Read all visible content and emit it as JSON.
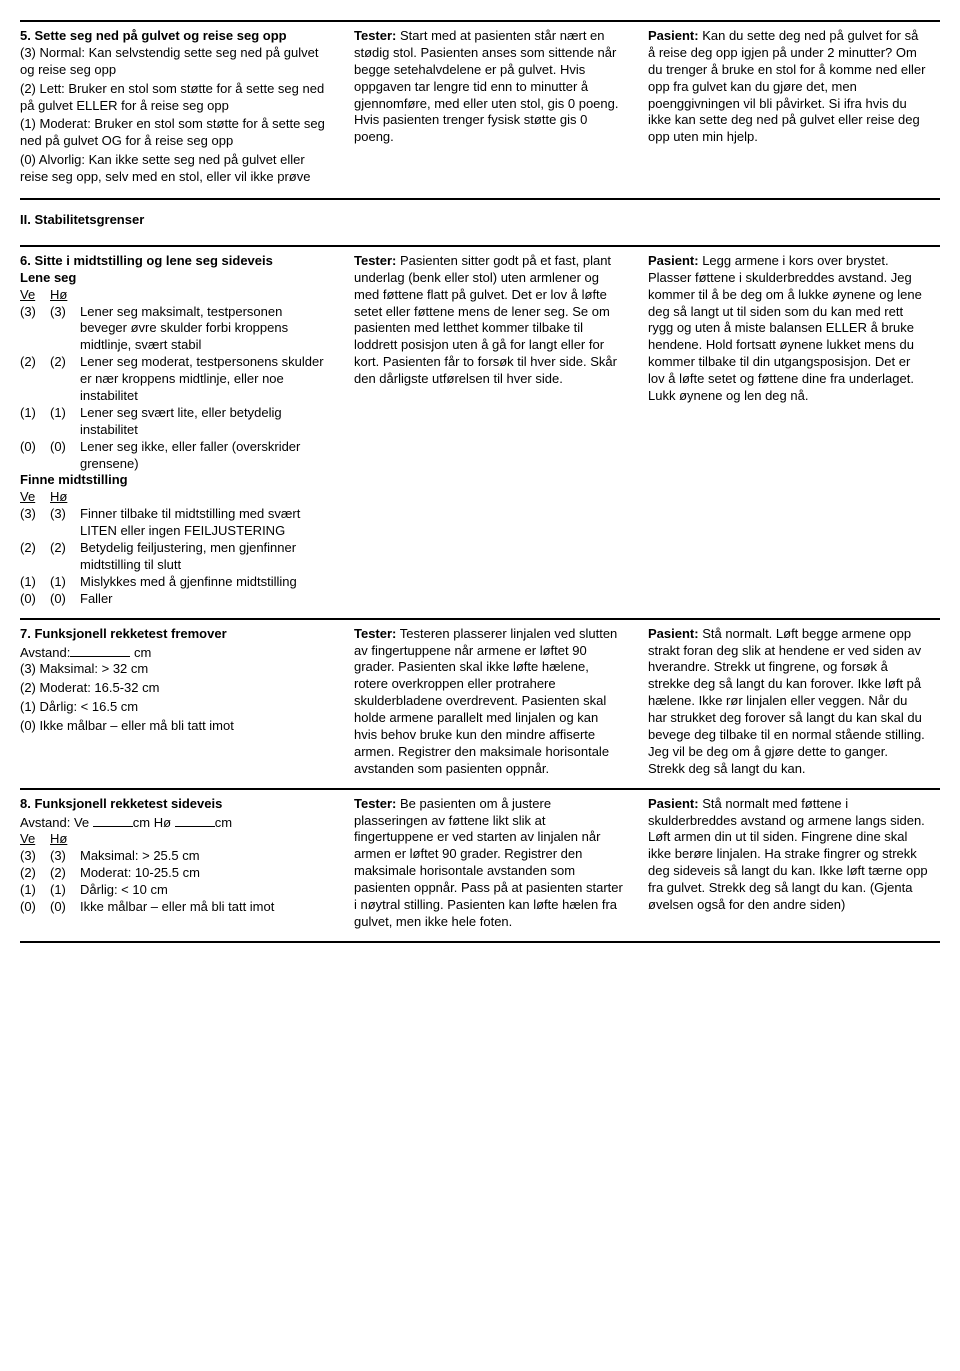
{
  "colors": {
    "text": "#000000",
    "bg": "#ffffff",
    "rule": "#000000"
  },
  "typography": {
    "family": "Arial",
    "size_pt": 10,
    "bold_weight": 700
  },
  "item5": {
    "title": "5. Sette seg ned på gulvet og reise seg opp",
    "left": [
      "(3) Normal: Kan selvstendig sette seg ned på gulvet og reise seg opp",
      "(2) Lett: Bruker en stol som støtte for å sette seg ned på gulvet ELLER for å reise seg opp",
      "(1) Moderat: Bruker en stol som støtte for å sette seg ned på gulvet OG for å reise seg opp",
      "(0) Alvorlig: Kan ikke sette seg ned på gulvet eller reise seg opp, selv med en stol, eller vil ikke prøve"
    ],
    "tester_label": "Tester:",
    "tester": "Start med at pasienten står nært en stødig stol. Pasienten anses som sittende når begge setehalvdelene er på gulvet. Hvis oppgaven tar lengre tid enn to minutter å gjennomføre, med eller uten stol, gis 0 poeng. Hvis pasienten trenger fysisk støtte gis 0 poeng.",
    "pasient_label": "Pasient:",
    "pasient": "Kan du sette deg ned på gulvet for så å reise deg opp igjen på under 2 minutter? Om du trenger å bruke en stol for å komme ned eller opp fra gulvet kan du gjøre det, men poenggivningen vil bli påvirket. Si ifra hvis du ikke kan sette deg ned på gulvet eller reise deg opp uten min hjelp."
  },
  "stability_heading": "II. Stabilitetsgrenser",
  "item6": {
    "title": "6. Sitte i midtstilling og lene seg sideveis",
    "sub1": "Lene seg",
    "ve": "Ve",
    "ho": "Hø",
    "rows1": [
      {
        "a": "(3)",
        "b": "(3)",
        "t": "Lener seg maksimalt, testpersonen beveger øvre skulder forbi kroppens midtlinje, svært stabil"
      },
      {
        "a": "(2)",
        "b": "(2)",
        "t": "Lener seg moderat, testpersonens skulder er nær kroppens midtlinje, eller noe instabilitet"
      },
      {
        "a": "(1)",
        "b": "(1)",
        "t": "Lener seg svært lite, eller betydelig instabilitet"
      },
      {
        "a": "(0)",
        "b": "(0)",
        "t": "Lener seg ikke, eller faller (overskrider grensene)"
      }
    ],
    "sub2": "Finne midtstilling",
    "rows2": [
      {
        "a": "(3)",
        "b": "(3)",
        "t": "Finner tilbake til midtstilling med svært LITEN eller ingen FEILJUSTERING"
      },
      {
        "a": "(2)",
        "b": "(2)",
        "t": "Betydelig feiljustering, men gjenfinner midtstilling til slutt"
      },
      {
        "a": "(1)",
        "b": "(1)",
        "t": "Mislykkes med å gjenfinne midtstilling"
      },
      {
        "a": "(0)",
        "b": "(0)",
        "t": "Faller"
      }
    ],
    "tester_label": "Tester:",
    "tester": "Pasienten sitter godt på et fast, plant underlag (benk eller stol) uten armlener og med føttene flatt på gulvet. Det er lov å løfte setet eller føttene mens de lener seg. Se om pasienten med letthet kommer tilbake til loddrett posisjon uten å gå for langt eller for kort. Pasienten får to forsøk til hver side. Skår den dårligste utførelsen til hver side.",
    "pasient_label": "Pasient:",
    "pasient": "Legg armene i kors over brystet. Plasser føttene i skulderbreddes avstand. Jeg kommer til å be deg om å lukke øynene og lene deg så langt ut til siden som du kan med rett rygg og uten å miste balansen ELLER å bruke hendene. Hold fortsatt øynene lukket mens du kommer tilbake til din utgangsposisjon. Det er lov å løfte setet og føttene dine fra underlaget. Lukk øynene og len deg nå."
  },
  "item7": {
    "title": "7. Funksjonell rekketest fremover",
    "dist_label": "Avstand:",
    "dist_unit": "cm",
    "left": [
      "(3) Maksimal: > 32 cm",
      "(2) Moderat: 16.5-32 cm",
      "(1) Dårlig: < 16.5 cm",
      "(0) Ikke målbar – eller må bli tatt imot"
    ],
    "tester_label": "Tester:",
    "tester": "Testeren plasserer linjalen ved slutten av fingertuppene når armene er løftet 90 grader. Pasienten skal ikke løfte hælene, rotere overkroppen eller protrahere skulderbladene overdrevent. Pasienten skal holde armene parallelt med linjalen og kan hvis behov bruke kun den mindre affiserte armen. Registrer den maksimale horisontale avstanden som pasienten oppnår.",
    "pasient_label": "Pasient:",
    "pasient": "Stå normalt. Løft begge armene opp strakt foran deg slik at hendene er ved siden av hverandre. Strekk ut fingrene, og forsøk å strekke deg så langt du kan forover. Ikke løft på hælene. Ikke rør linjalen eller veggen. Når du har strukket deg forover så langt du kan skal du bevege deg tilbake til en normal stående stilling. Jeg vil be deg om å gjøre dette to ganger. Strekk deg så langt du kan."
  },
  "item8": {
    "title": "8. Funksjonell rekketest sideveis",
    "dist_prefix": "Avstand: Ve",
    "dist_mid": "cm Hø",
    "dist_suffix": "cm",
    "ve": "Ve",
    "ho": "Hø",
    "rows": [
      {
        "a": "(3)",
        "b": "(3)",
        "t": "Maksimal: > 25.5 cm"
      },
      {
        "a": "(2)",
        "b": "(2)",
        "t": "Moderat: 10-25.5 cm"
      },
      {
        "a": "(1)",
        "b": "(1)",
        "t": "Dårlig: < 10 cm"
      },
      {
        "a": "(0)",
        "b": "(0)",
        "t": "Ikke målbar – eller må bli tatt imot"
      }
    ],
    "tester_label": "Tester:",
    "tester": "Be pasienten om å justere plasseringen av føttene likt slik at fingertuppene er ved starten av linjalen når armen er løftet 90 grader. Registrer den maksimale horisontale avstanden som pasienten oppnår. Pass på at pasienten starter i nøytral stilling. Pasienten kan løfte hælen fra gulvet, men ikke hele foten.",
    "pasient_label": "Pasient:",
    "pasient": "Stå normalt med føttene i skulderbreddes avstand og armene langs siden. Løft armen din ut til siden. Fingrene dine skal ikke berøre linjalen. Ha strake fingrer og strekk deg sideveis så langt du kan. Ikke løft tærne opp fra gulvet. Strekk deg så langt du kan. (Gjenta øvelsen også for den andre siden)"
  }
}
